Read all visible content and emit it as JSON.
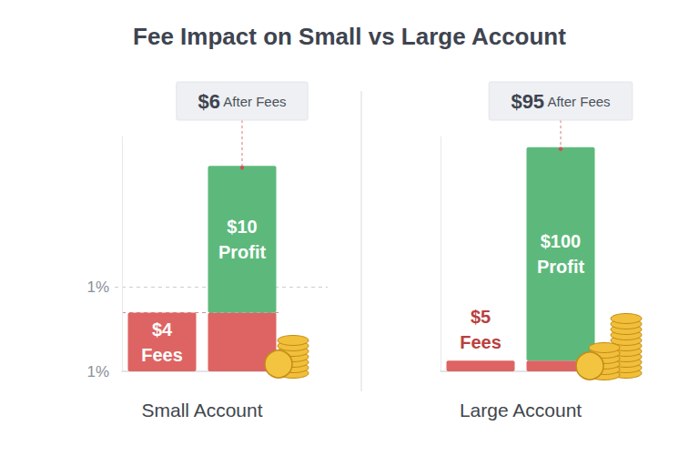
{
  "title": "Fee Impact on Small vs Large Account",
  "chart_data": [
    {
      "type": "bar",
      "xlabel": "Small Account",
      "categories": [
        null,
        null
      ],
      "stacked": true,
      "data_labels": true,
      "tick_labels": false,
      "grid": false,
      "ylim": [
        0,
        16
      ],
      "yticks": [],
      "series": [
        {
          "name": "Fees",
          "color": "#dd6462",
          "values": [
            4,
            4
          ],
          "value_labels": [
            "$4 Fees",
            null
          ]
        },
        {
          "name": "Profit",
          "color": "#5db97b",
          "values": [
            null,
            10
          ],
          "value_labels": [
            null,
            "$10 Profit"
          ]
        }
      ],
      "annotations": [
        "$6 After Fees"
      ],
      "axis_marks": [
        "1%",
        "1%"
      ]
    },
    {
      "type": "bar",
      "xlabel": "Large Account",
      "categories": [
        null,
        null
      ],
      "stacked": true,
      "data_labels": true,
      "tick_labels": false,
      "grid": false,
      "ylim": [
        0,
        110
      ],
      "yticks": [],
      "series": [
        {
          "name": "Fees",
          "color": "#dd6462",
          "values": [
            5,
            5
          ],
          "value_labels": [
            "$5 Fees",
            null
          ]
        },
        {
          "name": "Profit",
          "color": "#5db97b",
          "values": [
            null,
            100
          ],
          "value_labels": [
            null,
            "$100 Profit"
          ]
        }
      ],
      "annotations": [
        "$95 After Fees"
      ],
      "axis_marks": []
    }
  ]
}
